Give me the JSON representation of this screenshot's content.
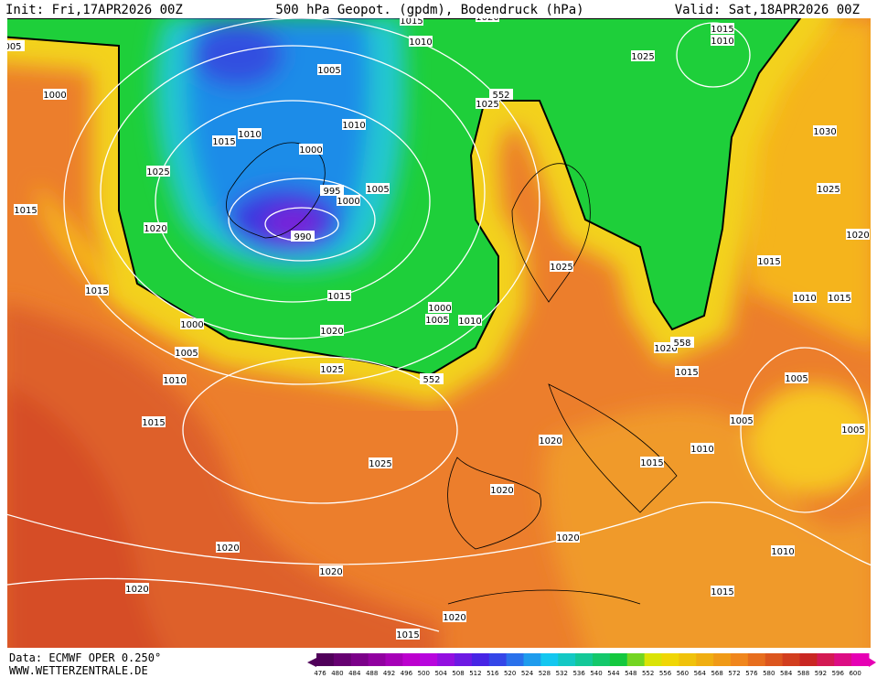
{
  "header": {
    "init": "Init: Fri,17APR2026 00Z",
    "title": "500 hPa Geopot. (gpdm), Bodendruck (hPa)",
    "valid": "Valid: Sat,18APR2026 00Z"
  },
  "isobar_labels": [
    "1015",
    "1020",
    "1010",
    "005",
    "1000",
    "1005",
    "1025",
    "1015",
    "1010",
    "552",
    "1025",
    "1010",
    "1015",
    "1010",
    "1000",
    "1030",
    "1025",
    "995",
    "1000",
    "1005",
    "1025",
    "1015",
    "1020",
    "990",
    "1020",
    "1025",
    "1015",
    "1015",
    "1015",
    "1010",
    "1015",
    "1000",
    "1005",
    "1010",
    "1000",
    "1005",
    "1020",
    "1020",
    "558",
    "1025",
    "552",
    "1015",
    "1005",
    "1010",
    "1015",
    "1005",
    "1005",
    "1020",
    "1010",
    "1015",
    "1025",
    "1020",
    "1020",
    "1020",
    "1010",
    "1020",
    "1015",
    "1020",
    "1020",
    "1015"
  ],
  "colorbar": {
    "labels": [
      476,
      480,
      484,
      488,
      492,
      496,
      500,
      504,
      508,
      512,
      516,
      520,
      524,
      528,
      532,
      536,
      540,
      544,
      548,
      552,
      556,
      560,
      564,
      568,
      572,
      576,
      580,
      584,
      588,
      592,
      596,
      600
    ]
  },
  "footer": {
    "source": "Data: ECMWF OPER 0.250°",
    "site": "WWW.WETTERZENTRALE.DE"
  }
}
